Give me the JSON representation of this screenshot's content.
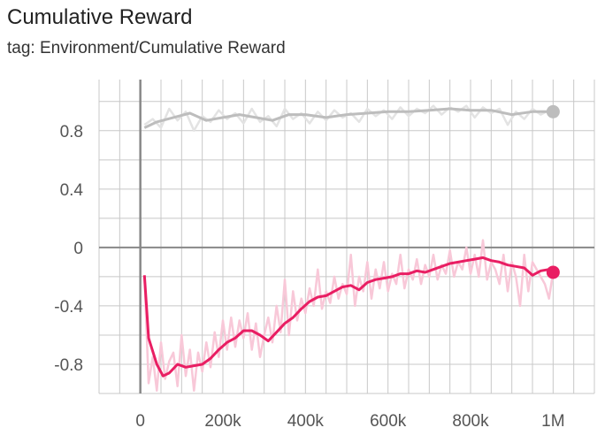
{
  "title": "Cumulative Reward",
  "subtitle": "tag: Environment/Cumulative Reward",
  "colors": {
    "grid": "#c8c8c8",
    "axis": "#888888",
    "gray": "#bdbdbd",
    "gray_raw": "#e3e3e3",
    "pink": "#e91e63",
    "pink_raw": "#f8c8d8"
  },
  "chart_data": {
    "type": "line",
    "title": "Cumulative Reward",
    "xlim": [
      -100000,
      1100000
    ],
    "ylim": [
      -1.0,
      1.15
    ],
    "x_ticks": [
      0,
      200000,
      400000,
      600000,
      800000,
      1000000
    ],
    "x_tick_labels": [
      "0",
      "200k",
      "400k",
      "600k",
      "800k",
      "1M"
    ],
    "y_ticks": [
      0.8,
      0.4,
      0,
      -0.4,
      -0.8
    ],
    "y_tick_labels": [
      "0.8",
      "0.4",
      "0",
      "-0.4",
      "-0.8"
    ],
    "grid": true,
    "series": [
      {
        "color": "#bdbdbd",
        "raw_color": "#e3e3e3",
        "smoothed": {
          "x": [
            10000,
            40000,
            80000,
            120000,
            160000,
            200000,
            240000,
            280000,
            320000,
            360000,
            400000,
            450000,
            500000,
            550000,
            600000,
            650000,
            700000,
            750000,
            800000,
            850000,
            900000,
            950000,
            1000000
          ],
          "y": [
            0.82,
            0.86,
            0.89,
            0.92,
            0.87,
            0.89,
            0.91,
            0.89,
            0.87,
            0.91,
            0.91,
            0.89,
            0.91,
            0.92,
            0.93,
            0.93,
            0.94,
            0.95,
            0.94,
            0.94,
            0.91,
            0.93,
            0.93
          ]
        },
        "raw": {
          "x": [
            10000,
            30000,
            50000,
            70000,
            90000,
            110000,
            130000,
            150000,
            170000,
            190000,
            210000,
            230000,
            250000,
            270000,
            290000,
            310000,
            330000,
            350000,
            370000,
            390000,
            410000,
            430000,
            450000,
            470000,
            490000,
            510000,
            530000,
            550000,
            570000,
            590000,
            610000,
            630000,
            650000,
            670000,
            690000,
            710000,
            730000,
            750000,
            770000,
            790000,
            810000,
            830000,
            850000,
            870000,
            890000,
            910000,
            930000,
            950000,
            970000,
            990000,
            1000000
          ],
          "y": [
            0.84,
            0.88,
            0.82,
            0.95,
            0.87,
            0.93,
            0.8,
            0.9,
            0.86,
            0.94,
            0.88,
            0.92,
            0.85,
            0.95,
            0.86,
            0.9,
            0.83,
            0.95,
            0.88,
            0.92,
            0.85,
            0.93,
            0.87,
            0.94,
            0.89,
            0.92,
            0.86,
            0.95,
            0.9,
            0.94,
            0.88,
            0.96,
            0.9,
            0.95,
            0.92,
            0.97,
            0.91,
            0.96,
            0.93,
            0.97,
            0.89,
            0.96,
            0.92,
            0.95,
            0.84,
            0.93,
            0.88,
            0.95,
            0.91,
            0.94,
            0.93
          ]
        }
      },
      {
        "color": "#e91e63",
        "raw_color": "#f8c8d8",
        "smoothed": {
          "x": [
            10000,
            20000,
            40000,
            55000,
            70000,
            90000,
            110000,
            130000,
            150000,
            170000,
            190000,
            210000,
            230000,
            250000,
            270000,
            290000,
            310000,
            330000,
            350000,
            370000,
            390000,
            410000,
            430000,
            450000,
            470000,
            490000,
            510000,
            530000,
            550000,
            570000,
            590000,
            610000,
            630000,
            650000,
            670000,
            690000,
            710000,
            730000,
            750000,
            770000,
            790000,
            810000,
            830000,
            850000,
            870000,
            890000,
            910000,
            930000,
            950000,
            970000,
            990000,
            1000000
          ],
          "y": [
            -0.19,
            -0.62,
            -0.8,
            -0.88,
            -0.86,
            -0.8,
            -0.82,
            -0.81,
            -0.8,
            -0.76,
            -0.7,
            -0.65,
            -0.62,
            -0.57,
            -0.57,
            -0.6,
            -0.64,
            -0.58,
            -0.52,
            -0.48,
            -0.42,
            -0.37,
            -0.34,
            -0.33,
            -0.3,
            -0.27,
            -0.26,
            -0.29,
            -0.24,
            -0.22,
            -0.21,
            -0.2,
            -0.18,
            -0.18,
            -0.16,
            -0.17,
            -0.15,
            -0.13,
            -0.11,
            -0.1,
            -0.09,
            -0.08,
            -0.07,
            -0.09,
            -0.1,
            -0.12,
            -0.13,
            -0.14,
            -0.19,
            -0.16,
            -0.15,
            -0.17
          ]
        },
        "raw": {
          "x": [
            10000,
            20000,
            30000,
            40000,
            50000,
            60000,
            70000,
            80000,
            90000,
            100000,
            110000,
            120000,
            130000,
            140000,
            150000,
            160000,
            170000,
            180000,
            190000,
            200000,
            210000,
            220000,
            230000,
            240000,
            250000,
            260000,
            270000,
            280000,
            290000,
            300000,
            310000,
            320000,
            330000,
            340000,
            350000,
            360000,
            370000,
            380000,
            390000,
            400000,
            410000,
            420000,
            430000,
            440000,
            450000,
            460000,
            470000,
            480000,
            490000,
            500000,
            510000,
            520000,
            530000,
            540000,
            550000,
            560000,
            570000,
            580000,
            590000,
            600000,
            610000,
            620000,
            630000,
            640000,
            650000,
            660000,
            670000,
            680000,
            690000,
            700000,
            710000,
            720000,
            730000,
            740000,
            750000,
            760000,
            770000,
            780000,
            790000,
            800000,
            810000,
            820000,
            830000,
            840000,
            850000,
            860000,
            870000,
            880000,
            890000,
            900000,
            910000,
            920000,
            930000,
            940000,
            950000,
            960000,
            970000,
            980000,
            990000,
            1000000
          ],
          "y": [
            -0.19,
            -0.93,
            -0.75,
            -0.98,
            -0.65,
            -0.9,
            -0.78,
            -0.72,
            -0.95,
            -0.6,
            -0.88,
            -0.7,
            -0.98,
            -0.72,
            -0.85,
            -0.65,
            -0.82,
            -0.58,
            -0.75,
            -0.5,
            -0.7,
            -0.48,
            -0.68,
            -0.5,
            -0.62,
            -0.45,
            -0.7,
            -0.52,
            -0.75,
            -0.6,
            -0.48,
            -0.65,
            -0.4,
            -0.58,
            -0.22,
            -0.6,
            -0.3,
            -0.5,
            -0.35,
            -0.45,
            -0.28,
            -0.4,
            -0.15,
            -0.42,
            -0.3,
            -0.38,
            -0.2,
            -0.35,
            -0.25,
            -0.32,
            -0.05,
            -0.4,
            -0.2,
            -0.3,
            -0.1,
            -0.35,
            -0.15,
            -0.28,
            -0.1,
            -0.3,
            -0.18,
            -0.25,
            -0.05,
            -0.28,
            -0.15,
            -0.22,
            -0.08,
            -0.25,
            -0.12,
            -0.2,
            -0.05,
            -0.22,
            -0.12,
            -0.18,
            -0.02,
            -0.2,
            -0.1,
            -0.15,
            0.0,
            -0.18,
            -0.05,
            -0.2,
            0.05,
            -0.22,
            -0.1,
            -0.15,
            -0.25,
            -0.05,
            -0.3,
            -0.1,
            -0.2,
            -0.4,
            -0.05,
            -0.3,
            -0.1,
            -0.15,
            -0.2,
            -0.25,
            -0.35,
            -0.17
          ]
        }
      }
    ]
  }
}
